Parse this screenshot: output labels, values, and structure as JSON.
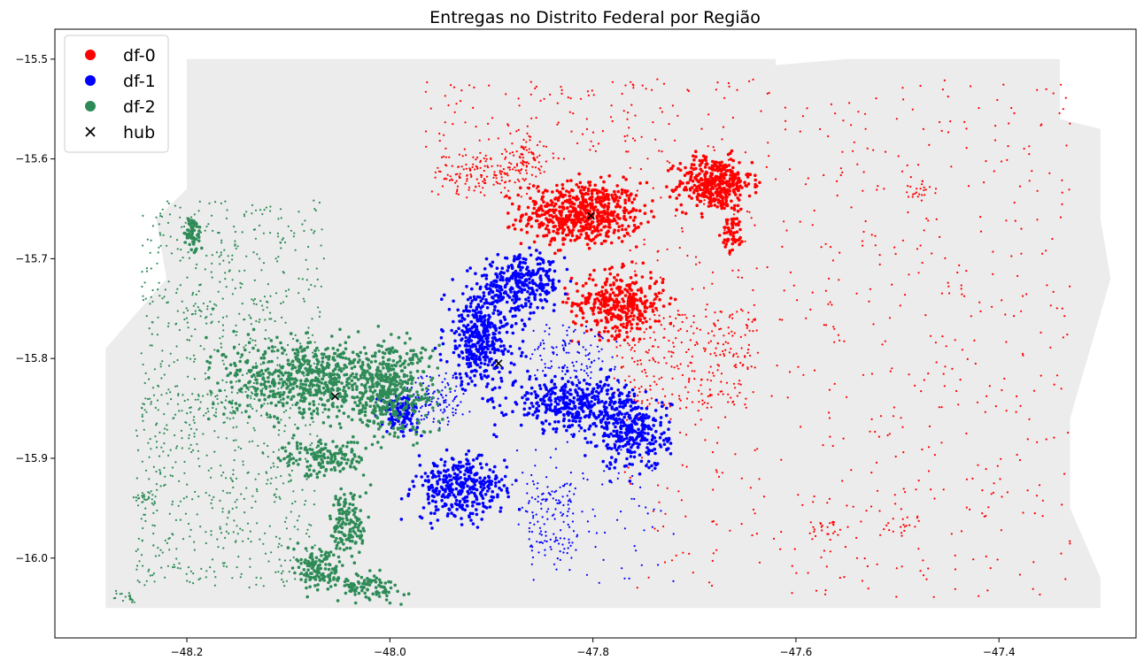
{
  "chart_data": {
    "type": "scatter",
    "title": "Entregas no Distrito Federal por Região",
    "xlabel": "",
    "ylabel": "",
    "xlim": [
      -48.33,
      -47.265
    ],
    "ylim": [
      -16.08,
      -15.47
    ],
    "xticks": [
      -48.2,
      -48.0,
      -47.8,
      -47.6,
      -47.4
    ],
    "xtick_labels": [
      "−48.2",
      "−48.0",
      "−47.8",
      "−47.6",
      "−47.4"
    ],
    "yticks": [
      -15.5,
      -15.6,
      -15.7,
      -15.8,
      -15.9,
      -16.0
    ],
    "ytick_labels": [
      "−15.5",
      "−15.6",
      "−15.7",
      "−15.8",
      "−15.9",
      "−16.0"
    ],
    "grid": false,
    "legend_position": "top-left",
    "background_region": {
      "color": "#ececec",
      "polygon": [
        [
          -48.2,
          -15.5
        ],
        [
          -47.62,
          -15.5
        ],
        [
          -47.62,
          -15.506
        ],
        [
          -47.55,
          -15.5
        ],
        [
          -47.34,
          -15.5
        ],
        [
          -47.34,
          -15.56
        ],
        [
          -47.3,
          -15.57
        ],
        [
          -47.3,
          -15.66
        ],
        [
          -47.29,
          -15.72
        ],
        [
          -47.31,
          -15.79
        ],
        [
          -47.33,
          -15.86
        ],
        [
          -47.33,
          -15.95
        ],
        [
          -47.3,
          -16.02
        ],
        [
          -47.3,
          -16.05
        ],
        [
          -48.28,
          -16.05
        ],
        [
          -48.28,
          -15.92
        ],
        [
          -48.28,
          -15.79
        ],
        [
          -48.22,
          -15.72
        ],
        [
          -48.23,
          -15.66
        ],
        [
          -48.2,
          -15.63
        ]
      ]
    },
    "series": [
      {
        "name": "df-0",
        "color": "#ff0000",
        "clusters": [
          {
            "cx": -47.81,
            "cy": -15.655,
            "rx": 0.065,
            "ry": 0.035,
            "n": 650,
            "kind": "dense"
          },
          {
            "cx": -47.68,
            "cy": -15.625,
            "rx": 0.04,
            "ry": 0.03,
            "n": 420,
            "kind": "dense"
          },
          {
            "cx": -47.662,
            "cy": -15.675,
            "rx": 0.012,
            "ry": 0.02,
            "n": 60,
            "kind": "dense"
          },
          {
            "cx": -47.775,
            "cy": -15.745,
            "rx": 0.05,
            "ry": 0.035,
            "n": 380,
            "kind": "dense"
          },
          {
            "cx": -47.905,
            "cy": -15.615,
            "rx": 0.045,
            "ry": 0.02,
            "n": 180,
            "kind": "medium"
          },
          {
            "cx": -47.865,
            "cy": -15.595,
            "rx": 0.018,
            "ry": 0.022,
            "n": 70,
            "kind": "medium"
          },
          {
            "cx": -47.71,
            "cy": -15.8,
            "rx": 0.07,
            "ry": 0.05,
            "n": 260,
            "kind": "sparse"
          },
          {
            "cx": -47.55,
            "cy": -15.78,
            "rx": 0.22,
            "ry": 0.26,
            "n": 650,
            "kind": "sparse"
          },
          {
            "cx": -47.85,
            "cy": -15.56,
            "rx": 0.12,
            "ry": 0.04,
            "n": 110,
            "kind": "sparse"
          },
          {
            "cx": -47.57,
            "cy": -15.97,
            "rx": 0.015,
            "ry": 0.012,
            "n": 25,
            "kind": "medium"
          },
          {
            "cx": -47.5,
            "cy": -15.97,
            "rx": 0.015,
            "ry": 0.01,
            "n": 25,
            "kind": "medium"
          },
          {
            "cx": -47.48,
            "cy": -15.63,
            "rx": 0.015,
            "ry": 0.012,
            "n": 25,
            "kind": "medium"
          }
        ]
      },
      {
        "name": "df-1",
        "color": "#0000ff",
        "clusters": [
          {
            "cx": -47.91,
            "cy": -15.78,
            "rx": 0.04,
            "ry": 0.055,
            "n": 420,
            "kind": "dense"
          },
          {
            "cx": -47.87,
            "cy": -15.725,
            "rx": 0.045,
            "ry": 0.03,
            "n": 320,
            "kind": "dense"
          },
          {
            "cx": -47.82,
            "cy": -15.845,
            "rx": 0.07,
            "ry": 0.03,
            "n": 420,
            "kind": "dense"
          },
          {
            "cx": -47.76,
            "cy": -15.875,
            "rx": 0.04,
            "ry": 0.04,
            "n": 300,
            "kind": "dense"
          },
          {
            "cx": -47.93,
            "cy": -15.93,
            "rx": 0.05,
            "ry": 0.035,
            "n": 360,
            "kind": "dense"
          },
          {
            "cx": -47.99,
            "cy": -15.855,
            "rx": 0.02,
            "ry": 0.02,
            "n": 120,
            "kind": "dense"
          },
          {
            "cx": -47.955,
            "cy": -15.84,
            "rx": 0.03,
            "ry": 0.025,
            "n": 140,
            "kind": "medium"
          },
          {
            "cx": -47.82,
            "cy": -15.795,
            "rx": 0.04,
            "ry": 0.025,
            "n": 120,
            "kind": "medium"
          },
          {
            "cx": -47.84,
            "cy": -15.96,
            "rx": 0.025,
            "ry": 0.035,
            "n": 120,
            "kind": "sparse"
          },
          {
            "cx": -47.8,
            "cy": -15.95,
            "rx": 0.08,
            "ry": 0.08,
            "n": 90,
            "kind": "sparse"
          }
        ]
      },
      {
        "name": "df-2",
        "color": "#2e8b57",
        "clusters": [
          {
            "cx": -48.08,
            "cy": -15.82,
            "rx": 0.09,
            "ry": 0.045,
            "n": 650,
            "kind": "dense"
          },
          {
            "cx": -48.0,
            "cy": -15.83,
            "rx": 0.05,
            "ry": 0.055,
            "n": 420,
            "kind": "dense"
          },
          {
            "cx": -48.065,
            "cy": -15.9,
            "rx": 0.045,
            "ry": 0.02,
            "n": 160,
            "kind": "dense"
          },
          {
            "cx": -48.04,
            "cy": -15.965,
            "rx": 0.02,
            "ry": 0.04,
            "n": 140,
            "kind": "dense"
          },
          {
            "cx": -48.07,
            "cy": -16.01,
            "rx": 0.028,
            "ry": 0.025,
            "n": 140,
            "kind": "dense"
          },
          {
            "cx": -48.02,
            "cy": -16.03,
            "rx": 0.035,
            "ry": 0.015,
            "n": 100,
            "kind": "dense"
          },
          {
            "cx": -48.195,
            "cy": -15.675,
            "rx": 0.01,
            "ry": 0.02,
            "n": 60,
            "kind": "dense"
          },
          {
            "cx": -48.155,
            "cy": -15.75,
            "rx": 0.09,
            "ry": 0.11,
            "n": 520,
            "kind": "sparse"
          },
          {
            "cx": -48.16,
            "cy": -15.93,
            "rx": 0.09,
            "ry": 0.1,
            "n": 480,
            "kind": "sparse"
          },
          {
            "cx": -48.24,
            "cy": -15.94,
            "rx": 0.012,
            "ry": 0.008,
            "n": 30,
            "kind": "medium"
          },
          {
            "cx": -48.26,
            "cy": -16.04,
            "rx": 0.01,
            "ry": 0.006,
            "n": 20,
            "kind": "medium"
          }
        ]
      }
    ],
    "hubs": {
      "name": "hub",
      "color": "#000000",
      "points": [
        {
          "x": -47.802,
          "y": -15.657
        },
        {
          "x": -47.893,
          "y": -15.805
        },
        {
          "x": -48.054,
          "y": -15.838
        }
      ]
    }
  }
}
